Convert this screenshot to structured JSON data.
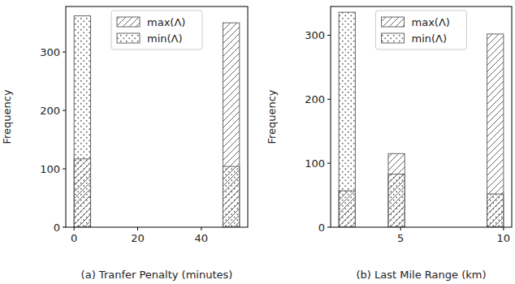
{
  "chart_data": [
    {
      "type": "histogram",
      "xlabel": "(a) Tranfer Penalty (minutes)",
      "ylabel": "Frequency",
      "bins": [
        0,
        5.2,
        10.4,
        15.6,
        20.8,
        26,
        31.2,
        36.4,
        41.6,
        46.8,
        52
      ],
      "series": [
        {
          "name": "max(Λ)",
          "color": "#666666",
          "values": [
            117,
            0,
            0,
            0,
            0,
            0,
            0,
            0,
            0,
            350
          ]
        },
        {
          "name": "min(Λ)",
          "color": "#666666",
          "values": [
            362,
            0,
            0,
            0,
            0,
            0,
            0,
            0,
            0,
            104
          ]
        }
      ],
      "xlim": [
        -2.6,
        54.6
      ],
      "xticks": [
        0,
        20,
        40
      ],
      "ylim": [
        0,
        378
      ],
      "yticks": [
        0,
        100,
        200,
        300
      ],
      "legend": "upper center"
    },
    {
      "type": "histogram",
      "xlabel": "(b) Last Mile Range (km)",
      "ylabel": "Frequency",
      "bins": [
        2,
        2.8,
        3.6,
        4.4,
        5.2,
        6,
        6.8,
        7.6,
        8.4,
        9.2,
        10
      ],
      "series": [
        {
          "name": "max(Λ)",
          "color": "#666666",
          "values": [
            57,
            0,
            0,
            115,
            0,
            0,
            0,
            0,
            0,
            302
          ]
        },
        {
          "name": "min(Λ)",
          "color": "#666666",
          "values": [
            336,
            0,
            0,
            83,
            0,
            0,
            0,
            0,
            0,
            52
          ]
        }
      ],
      "xlim": [
        1.6,
        10.4
      ],
      "xticks": [
        5,
        10
      ],
      "ylim": [
        0,
        345
      ],
      "yticks": [
        0,
        100,
        200,
        300
      ],
      "legend": "upper center"
    }
  ]
}
